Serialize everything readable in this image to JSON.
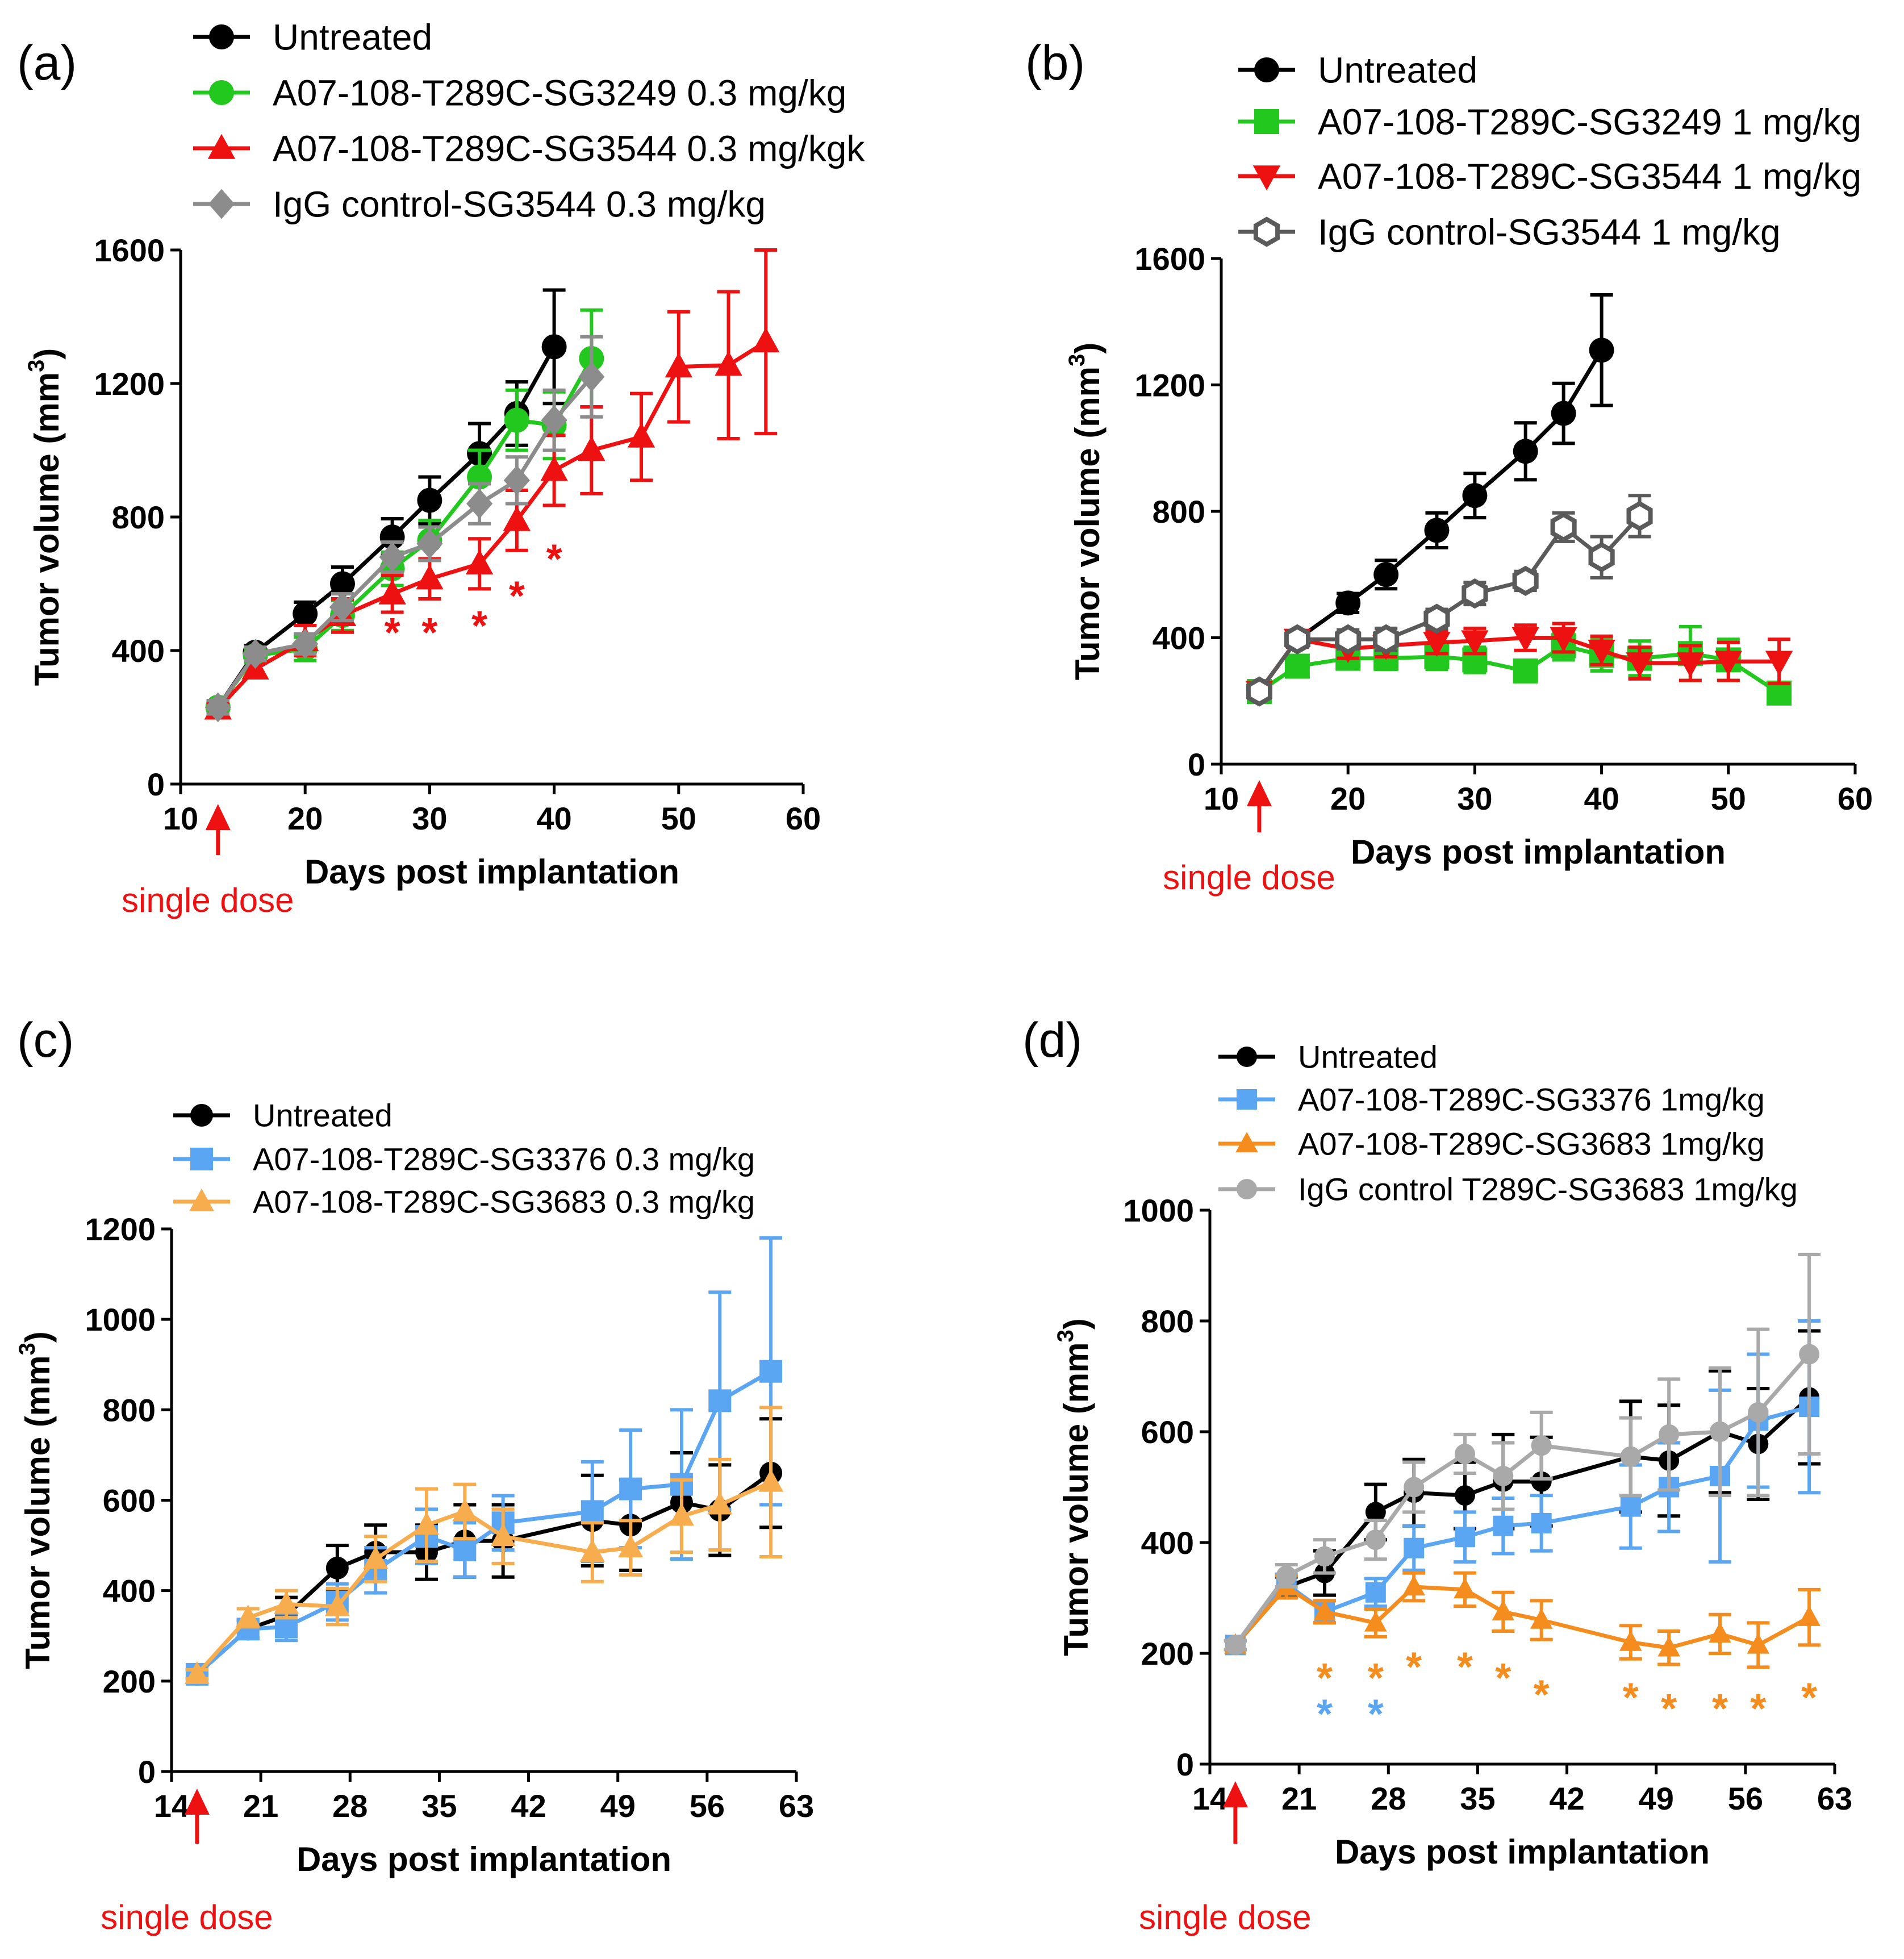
{
  "colors": {
    "black": "#000000",
    "green": "#22c81e",
    "red": "#ee1111",
    "grey": "#8c8c8c",
    "darkgrey": "#5a5a5a",
    "blue": "#5aa6f2",
    "lightorange": "#f7ac4d",
    "orange": "#f48c1e",
    "lightgrey": "#a9a9a9"
  },
  "dose_label": "single dose",
  "chart_data": [
    {
      "panel": "(a)",
      "type": "line",
      "xlabel": "Days post implantation",
      "ylabel": "Tumor volume (mm",
      "ylabel_sup": "3",
      "ylabel_close": ")",
      "xlim": [
        10,
        60
      ],
      "ylim": [
        0,
        1600
      ],
      "xticks": [
        "10",
        "20",
        "30",
        "40",
        "50",
        "60"
      ],
      "yticks": [
        "0",
        "400",
        "800",
        "1200",
        "1600"
      ],
      "dose_day": 13,
      "dose_label": "single dose",
      "series": [
        {
          "name": "Untreated",
          "color": "#000000",
          "marker": "circle",
          "x": [
            13,
            16,
            20,
            23,
            27,
            30,
            34,
            37,
            40
          ],
          "y": [
            230,
            395,
            510,
            600,
            740,
            850,
            990,
            1110,
            1310
          ],
          "err": [
            20,
            20,
            35,
            50,
            55,
            70,
            90,
            95,
            170
          ]
        },
        {
          "name": "A07-108-T289C-SG3249 0.3 mg/kg",
          "color": "#22c81e",
          "marker": "circle",
          "x": [
            13,
            16,
            20,
            23,
            27,
            30,
            34,
            37,
            40,
            43
          ],
          "y": [
            230,
            385,
            405,
            505,
            645,
            730,
            920,
            1090,
            1075,
            1275
          ],
          "err": [
            20,
            20,
            35,
            45,
            50,
            60,
            80,
            90,
            100,
            145
          ]
        },
        {
          "name": "A07-108-T289C-SG3544 0.3 mg/kgk",
          "color": "#ee1111",
          "marker": "triangle",
          "x": [
            13,
            16,
            20,
            23,
            27,
            30,
            34,
            37,
            40,
            43,
            47,
            50,
            54,
            57
          ],
          "y": [
            225,
            345,
            430,
            505,
            570,
            615,
            660,
            790,
            940,
            1000,
            1040,
            1250,
            1255,
            1325
          ],
          "err": [
            20,
            25,
            45,
            50,
            55,
            60,
            75,
            90,
            105,
            130,
            130,
            165,
            220,
            275
          ]
        },
        {
          "name": "IgG control-SG3544 0.3 mg/kg",
          "color": "#8c8c8c",
          "marker": "diamond",
          "x": [
            13,
            16,
            20,
            23,
            27,
            30,
            34,
            37,
            40,
            43
          ],
          "y": [
            230,
            390,
            420,
            530,
            680,
            720,
            840,
            910,
            1090,
            1220
          ],
          "err": [
            20,
            20,
            30,
            40,
            45,
            50,
            60,
            70,
            90,
            120
          ]
        }
      ],
      "annotations": [
        {
          "text": "*",
          "x": 27,
          "y": 470,
          "color": "#ee1111"
        },
        {
          "text": "*",
          "x": 30,
          "y": 470,
          "color": "#ee1111"
        },
        {
          "text": "*",
          "x": 34,
          "y": 490,
          "color": "#ee1111"
        },
        {
          "text": "*",
          "x": 37,
          "y": 580,
          "color": "#ee1111"
        },
        {
          "text": "*",
          "x": 40,
          "y": 690,
          "color": "#ee1111"
        }
      ]
    },
    {
      "panel": "(b)",
      "type": "line",
      "xlabel": "Days post implantation",
      "ylabel": "Tumor volume (mm",
      "ylabel_sup": "3",
      "ylabel_close": ")",
      "xlim": [
        10,
        60
      ],
      "ylim": [
        0,
        1600
      ],
      "xticks": [
        "10",
        "20",
        "30",
        "40",
        "50",
        "60"
      ],
      "yticks": [
        "0",
        "400",
        "800",
        "1200",
        "1600"
      ],
      "dose_day": 13,
      "dose_label": "single dose",
      "series": [
        {
          "name": "Untreated",
          "color": "#000000",
          "marker": "circle",
          "x": [
            13,
            16,
            20,
            23,
            27,
            30,
            34,
            37,
            40
          ],
          "y": [
            230,
            395,
            510,
            600,
            740,
            850,
            990,
            1110,
            1310
          ],
          "err": [
            20,
            20,
            30,
            45,
            55,
            70,
            90,
            95,
            175
          ]
        },
        {
          "name": "A07-108-T289C-SG3249 1 mg/kg",
          "color": "#22c81e",
          "marker": "square",
          "x": [
            13,
            16,
            20,
            23,
            27,
            30,
            34,
            37,
            40,
            43,
            47,
            50,
            54
          ],
          "y": [
            230,
            310,
            335,
            335,
            340,
            330,
            295,
            375,
            345,
            335,
            350,
            330,
            225
          ],
          "err": [
            20,
            25,
            30,
            35,
            40,
            40,
            30,
            45,
            50,
            55,
            85,
            65,
            25
          ]
        },
        {
          "name": "A07-108-T289C-SG3544 1 mg/kg",
          "color": "#ee1111",
          "marker": "triangle-down",
          "x": [
            13,
            16,
            20,
            23,
            27,
            30,
            34,
            37,
            40,
            43,
            47,
            50,
            54
          ],
          "y": [
            230,
            395,
            365,
            375,
            385,
            390,
            400,
            400,
            360,
            320,
            320,
            325,
            325
          ],
          "err": [
            20,
            25,
            30,
            35,
            35,
            40,
            40,
            45,
            45,
            50,
            55,
            60,
            70
          ]
        },
        {
          "name": "IgG control-SG3544 1 mg/kg",
          "color": "#5a5a5a",
          "marker": "hexagon-open",
          "x": [
            13,
            16,
            20,
            23,
            27,
            30,
            34,
            37,
            40,
            43
          ],
          "y": [
            230,
            395,
            395,
            395,
            460,
            540,
            580,
            750,
            655,
            785
          ],
          "err": [
            20,
            20,
            30,
            35,
            30,
            35,
            30,
            45,
            65,
            65
          ]
        }
      ],
      "annotations": []
    },
    {
      "panel": "(c)",
      "type": "line",
      "xlabel": "Days post implantation",
      "ylabel": "Tumor volume (mm",
      "ylabel_sup": "3",
      "ylabel_close": ")",
      "xlim": [
        14,
        63
      ],
      "ylim": [
        0,
        1200
      ],
      "xticks": [
        "14",
        "21",
        "28",
        "35",
        "42",
        "49",
        "56",
        "63"
      ],
      "yticks": [
        "0",
        "200",
        "400",
        "600",
        "800",
        "1000",
        "1200"
      ],
      "dose_day": 16,
      "dose_label": "single dose",
      "series": [
        {
          "name": "Untreated",
          "color": "#000000",
          "marker": "circle",
          "x": [
            16,
            20,
            23,
            27,
            30,
            34,
            37,
            40,
            47,
            50,
            54,
            57,
            61
          ],
          "y": [
            215,
            315,
            345,
            450,
            485,
            485,
            510,
            510,
            555,
            545,
            595,
            578,
            660
          ],
          "err": [
            10,
            20,
            40,
            50,
            60,
            60,
            80,
            80,
            100,
            100,
            110,
            100,
            120
          ]
        },
        {
          "name": "A07-108-T289C-SG3376 0.3 mg/kg",
          "color": "#5aa6f2",
          "marker": "square",
          "x": [
            16,
            20,
            23,
            27,
            30,
            34,
            37,
            40,
            47,
            50,
            54,
            57,
            61
          ],
          "y": [
            215,
            315,
            320,
            375,
            445,
            520,
            490,
            550,
            575,
            625,
            635,
            820,
            885
          ],
          "err": [
            10,
            20,
            30,
            40,
            50,
            60,
            60,
            60,
            110,
            130,
            165,
            240,
            295
          ]
        },
        {
          "name": "A07-108-T289C-SG3683 0.3 mg/kg",
          "color": "#f7ac4d",
          "marker": "triangle",
          "x": [
            16,
            20,
            23,
            27,
            30,
            34,
            37,
            40,
            47,
            50,
            54,
            57,
            61
          ],
          "y": [
            215,
            340,
            370,
            365,
            470,
            545,
            575,
            520,
            485,
            495,
            565,
            590,
            640
          ],
          "err": [
            10,
            20,
            30,
            40,
            50,
            80,
            60,
            60,
            65,
            60,
            80,
            100,
            165
          ]
        }
      ],
      "annotations": []
    },
    {
      "panel": "(d)",
      "type": "line",
      "xlabel": "Days post implantation",
      "ylabel": "Tumor volume (mm",
      "ylabel_sup": "3",
      "ylabel_close": ")",
      "xlim": [
        14,
        63
      ],
      "ylim": [
        0,
        1000
      ],
      "xticks": [
        "14",
        "21",
        "28",
        "35",
        "42",
        "49",
        "56",
        "63"
      ],
      "yticks": [
        "0",
        "200",
        "400",
        "600",
        "800",
        "1000"
      ],
      "dose_day": 16,
      "dose_label": "single dose",
      "series": [
        {
          "name": "Untreated",
          "color": "#000000",
          "marker": "circle",
          "x": [
            16,
            20,
            23,
            27,
            30,
            34,
            37,
            40,
            47,
            50,
            54,
            57,
            61
          ],
          "y": [
            215,
            320,
            345,
            455,
            490,
            485,
            510,
            510,
            555,
            548,
            600,
            578,
            662
          ],
          "err": [
            8,
            18,
            40,
            50,
            60,
            60,
            85,
            80,
            100,
            100,
            110,
            100,
            120
          ]
        },
        {
          "name": "A07-108-T289C-SG3376 1mg/kg",
          "color": "#5aa6f2",
          "marker": "square",
          "x": [
            16,
            20,
            23,
            27,
            30,
            34,
            37,
            40,
            47,
            50,
            54,
            57,
            61
          ],
          "y": [
            215,
            325,
            275,
            310,
            390,
            410,
            430,
            435,
            465,
            500,
            520,
            620,
            645
          ],
          "err": [
            8,
            18,
            20,
            25,
            40,
            45,
            50,
            50,
            75,
            80,
            155,
            120,
            155
          ]
        },
        {
          "name": "A07-108-T289C-SG3683 1mg/kg",
          "color": "#f48c1e",
          "marker": "triangle",
          "x": [
            16,
            20,
            23,
            27,
            30,
            34,
            37,
            40,
            47,
            50,
            54,
            57,
            61
          ],
          "y": [
            215,
            320,
            275,
            255,
            320,
            315,
            275,
            260,
            220,
            210,
            235,
            215,
            265
          ],
          "err": [
            8,
            20,
            20,
            25,
            25,
            30,
            35,
            35,
            30,
            30,
            35,
            40,
            50
          ]
        },
        {
          "name": "IgG control T289C-SG3683 1mg/kg",
          "color": "#a9a9a9",
          "marker": "circle",
          "x": [
            16,
            20,
            23,
            27,
            30,
            34,
            37,
            40,
            47,
            50,
            54,
            57,
            61
          ],
          "y": [
            215,
            340,
            375,
            405,
            500,
            560,
            520,
            575,
            555,
            595,
            600,
            635,
            740
          ],
          "err": [
            8,
            20,
            30,
            35,
            45,
            35,
            60,
            60,
            70,
            100,
            115,
            150,
            180
          ]
        }
      ],
      "annotations": [
        {
          "text": "*",
          "x": 23,
          "y": 165,
          "color": "#f48c1e"
        },
        {
          "text": "*",
          "x": 27,
          "y": 165,
          "color": "#f48c1e"
        },
        {
          "text": "*",
          "x": 30,
          "y": 185,
          "color": "#f48c1e"
        },
        {
          "text": "*",
          "x": 34,
          "y": 185,
          "color": "#f48c1e"
        },
        {
          "text": "*",
          "x": 37,
          "y": 165,
          "color": "#f48c1e"
        },
        {
          "text": "*",
          "x": 40,
          "y": 135,
          "color": "#f48c1e"
        },
        {
          "text": "*",
          "x": 47,
          "y": 130,
          "color": "#f48c1e"
        },
        {
          "text": "*",
          "x": 50,
          "y": 110,
          "color": "#f48c1e"
        },
        {
          "text": "*",
          "x": 54,
          "y": 110,
          "color": "#f48c1e"
        },
        {
          "text": "*",
          "x": 57,
          "y": 110,
          "color": "#f48c1e"
        },
        {
          "text": "*",
          "x": 61,
          "y": 130,
          "color": "#f48c1e"
        },
        {
          "text": "*",
          "x": 23,
          "y": 100,
          "color": "#5aa6f2"
        },
        {
          "text": "*",
          "x": 27,
          "y": 100,
          "color": "#5aa6f2"
        }
      ]
    }
  ]
}
